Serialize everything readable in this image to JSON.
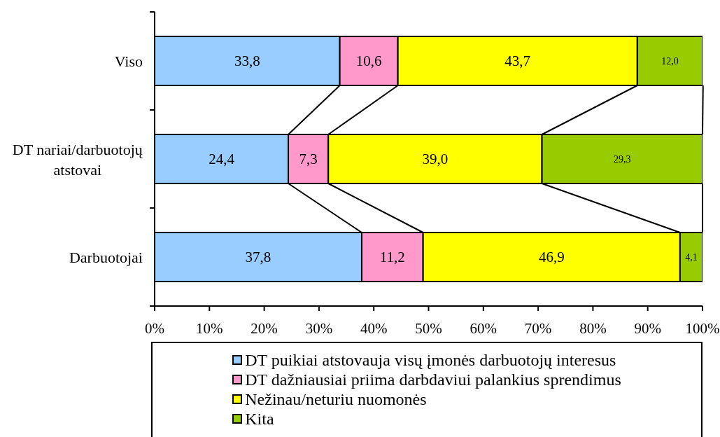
{
  "chart_data": {
    "type": "bar",
    "orientation": "horizontal",
    "stacked": true,
    "categories": [
      "Viso",
      "DT nariai/darbuotojų atstovai",
      "Darbuotojai"
    ],
    "series": [
      {
        "name": "DT puikiai atstovauja visų įmonės darbuotojų interesus",
        "color": "#99ccff",
        "values": [
          33.8,
          24.4,
          37.8
        ],
        "value_labels": [
          "33,8",
          "24,4",
          "37,8"
        ]
      },
      {
        "name": "DT dažniausiai priima darbdaviui palankius sprendimus",
        "color": "#ff99cc",
        "values": [
          10.6,
          7.3,
          11.2
        ],
        "value_labels": [
          "10,6",
          "7,3",
          "11,2"
        ]
      },
      {
        "name": "Nežinau/neturiu nuomonės",
        "color": "#ffff00",
        "values": [
          43.7,
          39.0,
          46.9
        ],
        "value_labels": [
          "43,7",
          "39,0",
          "46,9"
        ]
      },
      {
        "name": "Kita",
        "color": "#99cc00",
        "values": [
          12.0,
          29.3,
          4.1
        ],
        "value_labels": [
          "12,0",
          "29,3",
          "4,1"
        ]
      }
    ],
    "xlim": [
      0,
      100
    ],
    "xticks": [
      {
        "value": 0,
        "label": "0%"
      },
      {
        "value": 10,
        "label": "10%"
      },
      {
        "value": 20,
        "label": "20%"
      },
      {
        "value": 30,
        "label": "30%"
      },
      {
        "value": 40,
        "label": "40%"
      },
      {
        "value": 50,
        "label": "50%"
      },
      {
        "value": 60,
        "label": "60%"
      },
      {
        "value": 70,
        "label": "70%"
      },
      {
        "value": 80,
        "label": "80%"
      },
      {
        "value": 90,
        "label": "90%"
      },
      {
        "value": 100,
        "label": "100%"
      }
    ],
    "legend": "bottom"
  }
}
